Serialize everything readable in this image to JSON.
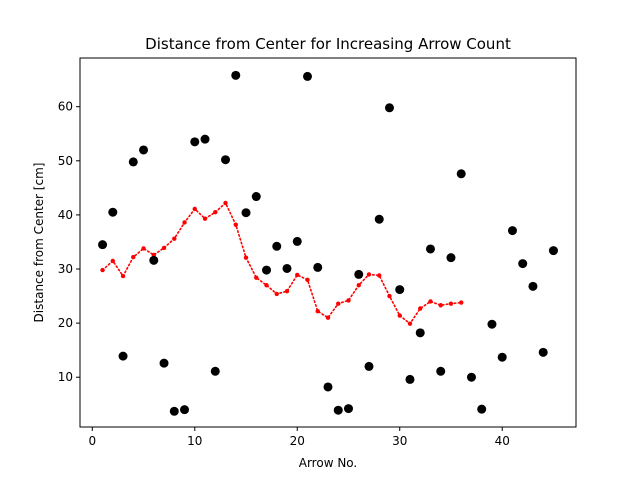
{
  "chart_data": {
    "type": "scatter",
    "title": "Distance from Center for Increasing Arrow Count",
    "xlabel": "Arrow No.",
    "ylabel": "Distance from Center [cm]",
    "xlim": [
      -1.2,
      47.2
    ],
    "ylim": [
      0.8,
      69.0
    ],
    "xticks": [
      0,
      10,
      20,
      30,
      40
    ],
    "yticks": [
      10,
      20,
      30,
      40,
      50,
      60
    ],
    "grid": false,
    "legend": "none",
    "series": [
      {
        "style": "markers",
        "color": "#000000",
        "x": [
          1,
          2,
          3,
          4,
          5,
          6,
          7,
          8,
          9,
          10,
          11,
          12,
          13,
          14,
          15,
          16,
          17,
          18,
          19,
          20,
          21,
          22,
          23,
          24,
          25,
          26,
          27,
          28,
          29,
          30,
          31,
          32,
          33,
          34,
          35,
          36,
          37,
          38,
          39,
          40,
          41,
          42,
          43,
          44,
          45
        ],
        "y": [
          34.5,
          40.5,
          13.9,
          49.8,
          52.0,
          31.6,
          12.6,
          3.7,
          4.0,
          53.5,
          54.0,
          11.1,
          50.2,
          65.8,
          40.4,
          43.4,
          29.8,
          34.2,
          30.1,
          35.1,
          65.6,
          30.3,
          8.2,
          3.9,
          4.2,
          29.0,
          12.0,
          39.2,
          59.8,
          26.2,
          9.6,
          18.2,
          33.7,
          11.1,
          32.1,
          47.6,
          10.0,
          4.1,
          19.8,
          13.7,
          37.1,
          31.0,
          26.8,
          14.6,
          33.4
        ]
      },
      {
        "style": "dotted-line-markers",
        "color": "#ff0000",
        "x": [
          1,
          2,
          3,
          4,
          5,
          6,
          7,
          8,
          9,
          10,
          11,
          12,
          13,
          14,
          15,
          16,
          17,
          18,
          19,
          20,
          21,
          22,
          23,
          24,
          25,
          26,
          27,
          28,
          29,
          30,
          31,
          32,
          33,
          34,
          35,
          36
        ],
        "y": [
          29.8,
          31.5,
          28.7,
          32.2,
          33.8,
          32.6,
          33.9,
          35.6,
          38.6,
          41.1,
          39.3,
          40.5,
          42.2,
          38.2,
          32.1,
          28.4,
          27.0,
          25.4,
          25.9,
          28.9,
          28.0,
          22.2,
          21.0,
          23.6,
          24.2,
          27.0,
          29.0,
          28.8,
          25.0,
          21.4,
          19.9,
          22.7,
          24.0,
          23.3,
          23.6,
          23.8
        ]
      }
    ]
  }
}
